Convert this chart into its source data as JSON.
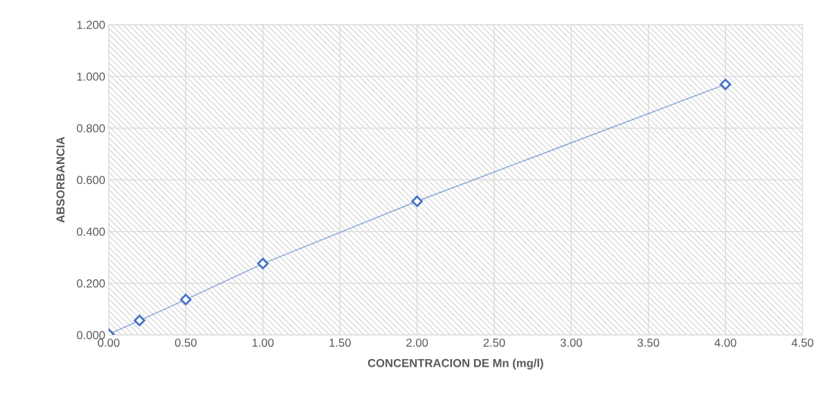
{
  "chart_data": {
    "type": "line",
    "xlabel": "CONCENTRACION DE Mn (mg/l)",
    "ylabel": "ABSORBANCIA",
    "x": [
      0,
      0.2,
      0.5,
      1.0,
      2.0,
      4.0
    ],
    "series": [
      {
        "color": "#4472c4",
        "values": [
          0.003,
          0.056,
          0.137,
          0.276,
          0.517,
          0.969
        ]
      }
    ],
    "xlim": [
      0,
      4.5
    ],
    "xticks": [
      {
        "value": 0,
        "label": "0.00"
      },
      {
        "value": 0.5,
        "label": "0.50"
      },
      {
        "value": 1,
        "label": "1.00"
      },
      {
        "value": 1.5,
        "label": "1.50"
      },
      {
        "value": 2,
        "label": "2.00"
      },
      {
        "value": 2.5,
        "label": "2.50"
      },
      {
        "value": 3,
        "label": "3.00"
      },
      {
        "value": 3.5,
        "label": "3.50"
      },
      {
        "value": 4,
        "label": "4.00"
      },
      {
        "value": 4.5,
        "label": "4.50"
      }
    ],
    "ylim": [
      0,
      1.2
    ],
    "yticks": [
      {
        "value": 0,
        "label": "0.000"
      },
      {
        "value": 0.2,
        "label": "0.200"
      },
      {
        "value": 0.4,
        "label": "0.400"
      },
      {
        "value": 0.6,
        "label": "0.600"
      },
      {
        "value": 0.8,
        "label": "0.800"
      },
      {
        "value": 1.0,
        "label": "1.000"
      },
      {
        "value": 1.2,
        "label": "1.200"
      }
    ],
    "grid": true,
    "marker": "diamond",
    "line_style": "solid",
    "legend": false
  }
}
